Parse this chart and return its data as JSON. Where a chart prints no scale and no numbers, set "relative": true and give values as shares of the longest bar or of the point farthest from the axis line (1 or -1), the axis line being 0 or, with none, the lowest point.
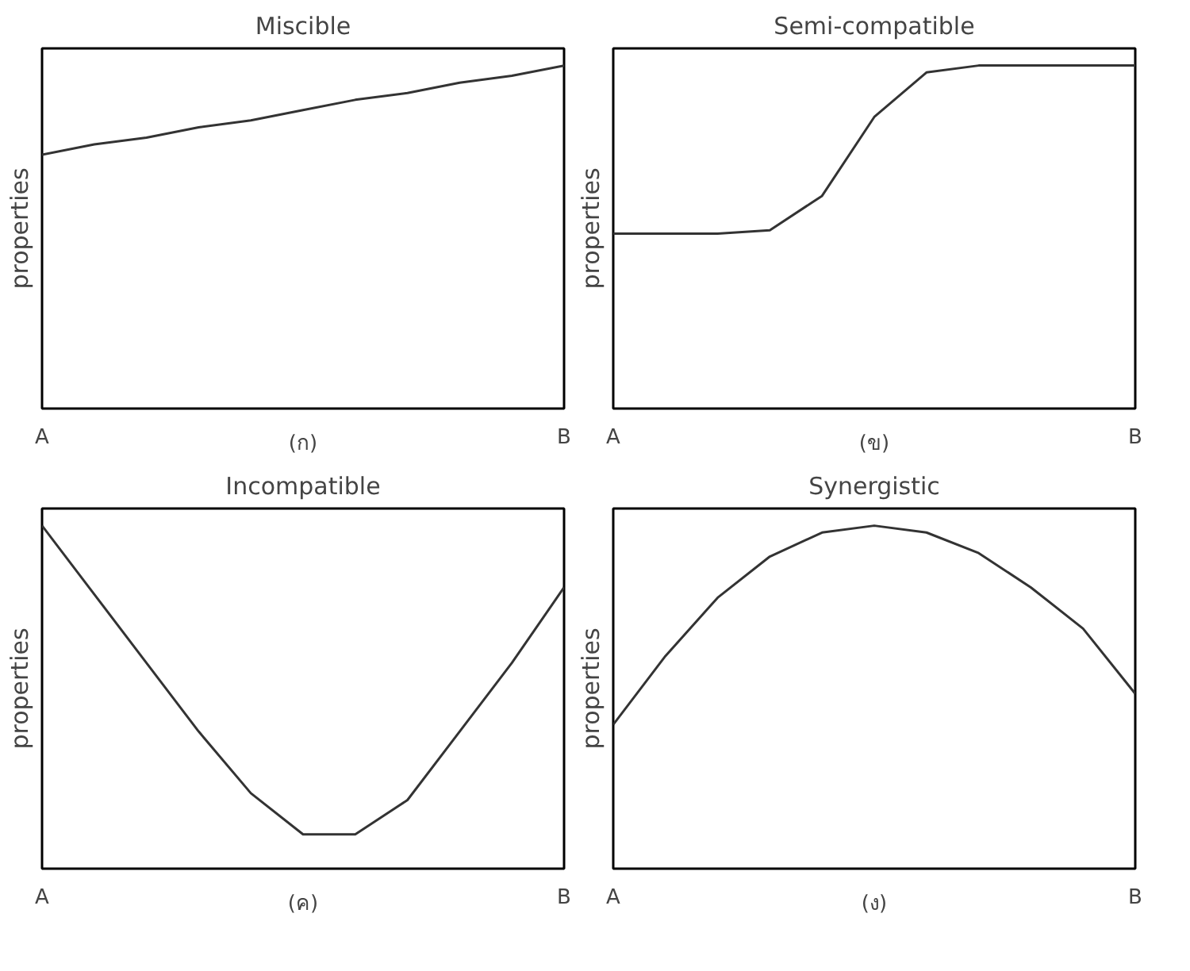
{
  "chart_data": [
    {
      "type": "line",
      "title": "Miscible",
      "xlabel": "(ก)",
      "ylabel": "properties",
      "relative": true,
      "tick_labels": "x",
      "categories": [
        "A",
        null,
        null,
        null,
        null,
        null,
        null,
        null,
        null,
        null,
        "B"
      ],
      "series": [
        {
          "color": "#333333",
          "values": [
            0.74,
            0.77,
            0.79,
            0.82,
            0.84,
            0.87,
            0.9,
            0.92,
            0.95,
            0.97,
            1.0
          ]
        }
      ]
    },
    {
      "type": "line",
      "title": "Semi-compatible",
      "xlabel": "(ข)",
      "ylabel": "properties",
      "relative": true,
      "tick_labels": "x",
      "categories": [
        "A",
        null,
        null,
        null,
        null,
        null,
        null,
        null,
        null,
        null,
        "B"
      ],
      "series": [
        {
          "color": "#333333",
          "values": [
            0.51,
            0.51,
            0.51,
            0.52,
            0.62,
            0.85,
            0.98,
            1.0,
            1.0,
            1.0,
            1.0
          ]
        }
      ]
    },
    {
      "type": "line",
      "title": "Incompatible",
      "xlabel": "(ค)",
      "ylabel": "properties",
      "relative": true,
      "tick_labels": "x",
      "categories": [
        "A",
        null,
        null,
        null,
        null,
        null,
        null,
        null,
        null,
        null,
        "B"
      ],
      "series": [
        {
          "color": "#333333",
          "values": [
            1.0,
            0.8,
            0.6,
            0.4,
            0.22,
            0.1,
            0.1,
            0.2,
            0.4,
            0.6,
            0.82
          ]
        }
      ]
    },
    {
      "type": "line",
      "title": "Synergistic",
      "xlabel": "(ง)",
      "ylabel": "properties",
      "relative": true,
      "tick_labels": "x",
      "categories": [
        "A",
        null,
        null,
        null,
        null,
        null,
        null,
        null,
        null,
        null,
        "B"
      ],
      "series": [
        {
          "color": "#333333",
          "values": [
            0.42,
            0.62,
            0.79,
            0.91,
            0.98,
            1.0,
            0.98,
            0.92,
            0.82,
            0.7,
            0.51
          ]
        }
      ]
    }
  ]
}
